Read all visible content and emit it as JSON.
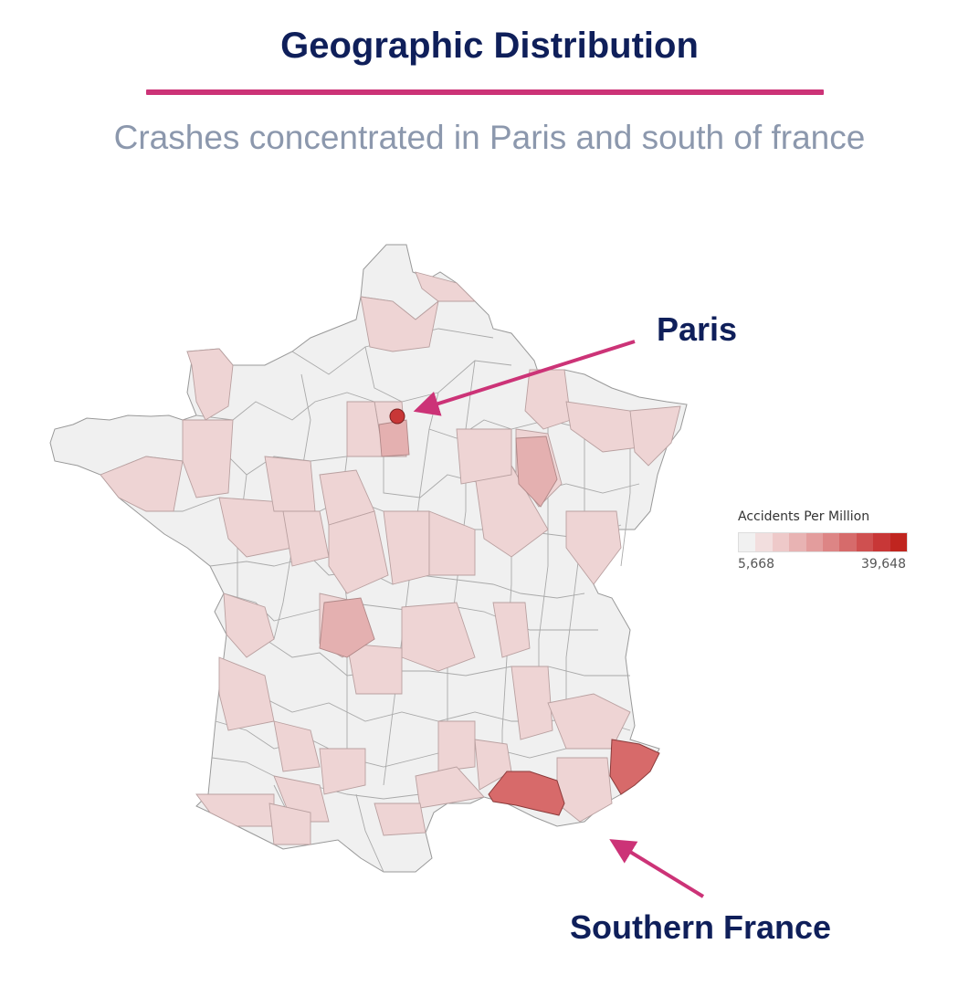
{
  "header": {
    "title": "Geographic Distribution",
    "subtitle": "Crashes concentrated in Paris and south of france"
  },
  "colors": {
    "title": "#0f1f5a",
    "rule": "#cc3377",
    "subtitle": "#8c98ad",
    "arrow": "#cc3377",
    "scale_low": "#f3f3f3",
    "scale_high": "#c0251f"
  },
  "callouts": {
    "paris": "Paris",
    "south": "Southern France"
  },
  "legend": {
    "title": "Accidents Per Million",
    "min_label": "5,668",
    "max_label": "39,648",
    "min": 5668,
    "max": 39648,
    "steps": [
      "#f1f1f1",
      "#f2dede",
      "#eec9c9",
      "#e8b3b3",
      "#e39d9d",
      "#dd8585",
      "#d66b6b",
      "#cf5050",
      "#c83737",
      "#c0251f"
    ]
  },
  "map_data": {
    "scale_note": "relative intensity per highlighted department (0 = lowest, 1 = highest)",
    "regions": [
      {
        "name": "paris",
        "intensity": 1.0
      },
      {
        "name": "alpes-maritimes",
        "intensity": 0.6
      },
      {
        "name": "bouches-du-rhone",
        "intensity": 0.6
      },
      {
        "name": "var",
        "intensity": 0.15
      }
    ]
  }
}
